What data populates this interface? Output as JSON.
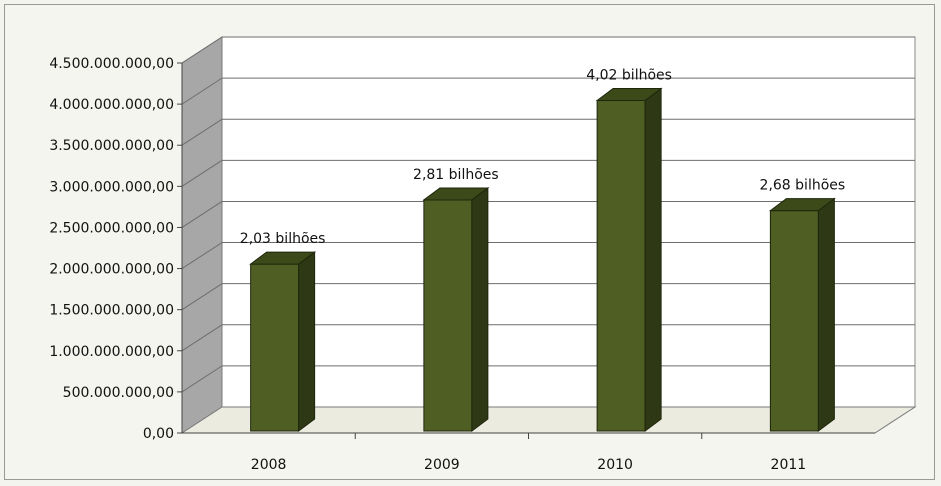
{
  "chart_data": {
    "type": "bar",
    "categories": [
      "2008",
      "2009",
      "2010",
      "2011"
    ],
    "values": [
      2030000000,
      2810000000,
      4020000000,
      2680000000
    ],
    "data_labels": [
      "2,03 bilhões",
      "2,81 bilhões",
      "4,02 bilhões",
      "2,68 bilhões"
    ],
    "y_ticks": [
      0,
      500000000,
      1000000000,
      1500000000,
      2000000000,
      2500000000,
      3000000000,
      3500000000,
      4000000000,
      4500000000
    ],
    "y_tick_labels": [
      "0,00",
      "500.000.000,00",
      "1.000.000.000,00",
      "1.500.000.000,00",
      "2.000.000.000,00",
      "2.500.000.000,00",
      "3.000.000.000,00",
      "3.500.000.000,00",
      "4.000.000.000,00",
      "4.500.000.000,00"
    ],
    "ylim": [
      0,
      4500000000
    ],
    "title": "",
    "xlabel": "",
    "ylabel": "",
    "grid": true,
    "style": "3d-column",
    "colors": {
      "bar_front": "#4f5f23",
      "bar_side": "#2e3814",
      "bar_top": "#3b4a18",
      "wall": "#ffffff",
      "side_wall": "#a7a7a7",
      "floor": "#ecebe0",
      "gridline": "#6e6e6e"
    }
  }
}
